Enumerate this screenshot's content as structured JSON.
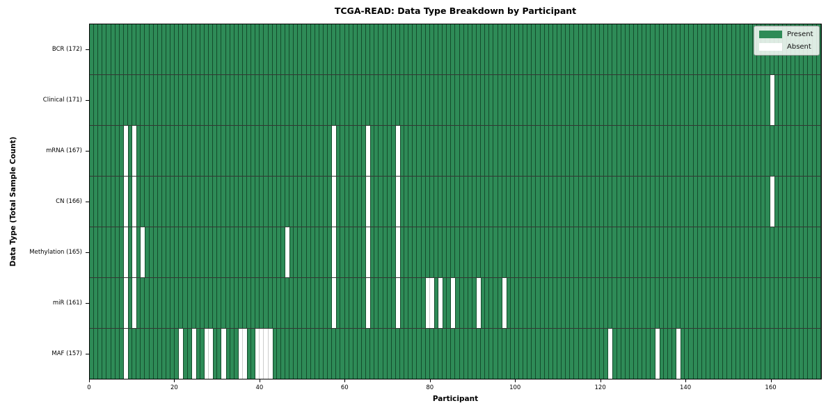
{
  "title": "TCGA-READ: Data Type Breakdown by Participant",
  "axes": {
    "xlabel": "Participant",
    "ylabel": "Data Type (Total Sample Count)",
    "x_ticks": [
      0,
      20,
      40,
      60,
      80,
      100,
      120,
      140,
      160
    ]
  },
  "legend": {
    "items": [
      {
        "label": "Present",
        "color": "#2e8b57"
      },
      {
        "label": "Absent",
        "color": "#ffffff"
      }
    ]
  },
  "chart_data": {
    "type": "heatmap",
    "title": "TCGA-READ: Data Type Breakdown by Participant",
    "xlabel": "Participant",
    "ylabel": "Data Type (Total Sample Count)",
    "n_participants": 172,
    "x_range": [
      0,
      172
    ],
    "x_ticks": [
      0,
      20,
      40,
      60,
      80,
      100,
      120,
      140,
      160
    ],
    "legend_position": "upper right",
    "cell_values": "1 = present (green), 0 = absent (white)",
    "rows": [
      {
        "data_type": "BCR",
        "label": "BCR (172)",
        "total_sample_count": 172,
        "absent_participants": []
      },
      {
        "data_type": "Clinical",
        "label": "Clinical (171)",
        "total_sample_count": 171,
        "absent_participants": [
          160
        ]
      },
      {
        "data_type": "mRNA",
        "label": "mRNA (167)",
        "total_sample_count": 167,
        "absent_participants": [
          8,
          10,
          57,
          65,
          72
        ]
      },
      {
        "data_type": "CN",
        "label": "CN (166)",
        "total_sample_count": 166,
        "absent_participants": [
          8,
          10,
          57,
          65,
          72,
          160
        ]
      },
      {
        "data_type": "Methylation",
        "label": "Methylation (165)",
        "total_sample_count": 165,
        "absent_participants": [
          8,
          10,
          12,
          46,
          57,
          65,
          72
        ]
      },
      {
        "data_type": "miR",
        "label": "miR (161)",
        "total_sample_count": 161,
        "absent_participants": [
          8,
          10,
          57,
          65,
          72,
          79,
          80,
          82,
          85,
          91,
          97
        ]
      },
      {
        "data_type": "MAF",
        "label": "MAF (157)",
        "total_sample_count": 157,
        "absent_participants": [
          8,
          21,
          24,
          27,
          28,
          31,
          35,
          36,
          39,
          40,
          41,
          42,
          122,
          133,
          138
        ]
      }
    ],
    "colors": {
      "present": "#2e8b57",
      "absent": "#ffffff",
      "cell_edge": "rgba(0,25,10,0.55)",
      "row_divider": "rgba(15,20,15,0.85)",
      "plot_border": "#000000"
    }
  }
}
